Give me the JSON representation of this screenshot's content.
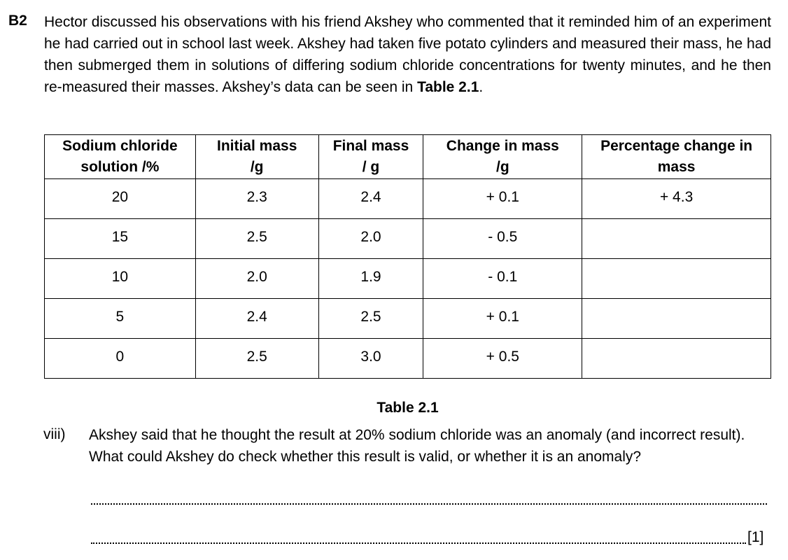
{
  "question": {
    "number": "B2",
    "intro_part1": "Hector discussed his observations with his friend Akshey who commented that it reminded him of an experiment he had carried out in school last week.  Akshey had taken five potato cylinders and measured their mass, he had then submerged them in solutions of differing sodium chloride concentrations for twenty minutes, and he then re-measured their masses.  Akshey’s data can be seen in ",
    "intro_bold": "Table 2.1",
    "intro_end": "."
  },
  "table": {
    "headers": [
      {
        "line1": "Sodium chloride",
        "line2": "solution /%"
      },
      {
        "line1": "Initial mass",
        "line2": "/g"
      },
      {
        "line1": "Final mass",
        "line2": "/ g"
      },
      {
        "line1": "Change in mass",
        "line2": "/g"
      },
      {
        "line1": "Percentage change in",
        "line2": "mass"
      }
    ],
    "rows": [
      [
        "20",
        "2.3",
        "2.4",
        "+ 0.1",
        "+ 4.3"
      ],
      [
        "15",
        "2.5",
        "2.0",
        "- 0.5",
        ""
      ],
      [
        "10",
        "2.0",
        "1.9",
        "- 0.1",
        ""
      ],
      [
        "5",
        "2.4",
        "2.5",
        "+ 0.1",
        ""
      ],
      [
        "0",
        "2.5",
        "3.0",
        "+ 0.5",
        ""
      ]
    ],
    "caption": "Table 2.1"
  },
  "subquestion": {
    "number": "viii)",
    "text": "Akshey said that he thought the result at 20% sodium chloride was an anomaly (and incorrect result).  What could Akshey do check whether this result is valid, or whether it is an anomaly?",
    "marks": "[1]"
  }
}
